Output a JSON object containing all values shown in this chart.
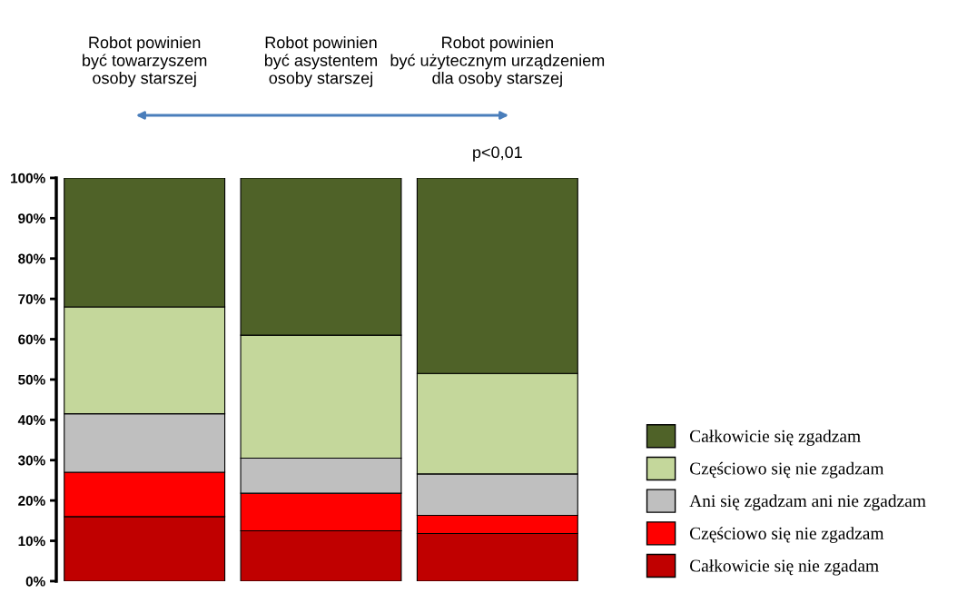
{
  "chart_data": {
    "type": "bar",
    "stacked": true,
    "categories": [
      "Robot powinien\nbyć towarzyszem\nosoby starszej",
      "Robot powinien\nbyć asystentem\nosoby starszej",
      "Robot powinien\nbyć użytecznym urządzeniem\ndla osoby starszej"
    ],
    "series": [
      {
        "name": "Całkowicie się nie zgadam",
        "color": "#c00000",
        "values": [
          16,
          12.5,
          11.8
        ]
      },
      {
        "name": "Częściowo się nie zgadzam",
        "color": "#ff0000",
        "values": [
          11,
          9.3,
          4.5
        ]
      },
      {
        "name": "Ani się zgadzam ani nie zgadzam",
        "color": "#bfbfbf",
        "values": [
          14.5,
          8.7,
          10.3
        ]
      },
      {
        "name": "Częściowo się nie zgadzam",
        "color": "#c4d79b",
        "values": [
          26.5,
          30.5,
          24.9
        ]
      },
      {
        "name": "Całkowicie się zgadzam",
        "color": "#4f6228",
        "values": [
          32,
          39,
          48.5
        ]
      }
    ],
    "ylim": [
      0,
      100
    ],
    "yticks": [
      {
        "value": 0,
        "label": "0%"
      },
      {
        "value": 10,
        "label": "10%"
      },
      {
        "value": 20,
        "label": "20%"
      },
      {
        "value": 30,
        "label": "30%"
      },
      {
        "value": 40,
        "label": "40%"
      },
      {
        "value": 50,
        "label": "50%"
      },
      {
        "value": 60,
        "label": "60%"
      },
      {
        "value": 70,
        "label": "70%"
      },
      {
        "value": 80,
        "label": "80%"
      },
      {
        "value": 90,
        "label": "90%"
      },
      {
        "value": 100,
        "label": "100%"
      }
    ],
    "annotations": [
      "p<0,01"
    ],
    "legend": "right",
    "grid": false
  }
}
